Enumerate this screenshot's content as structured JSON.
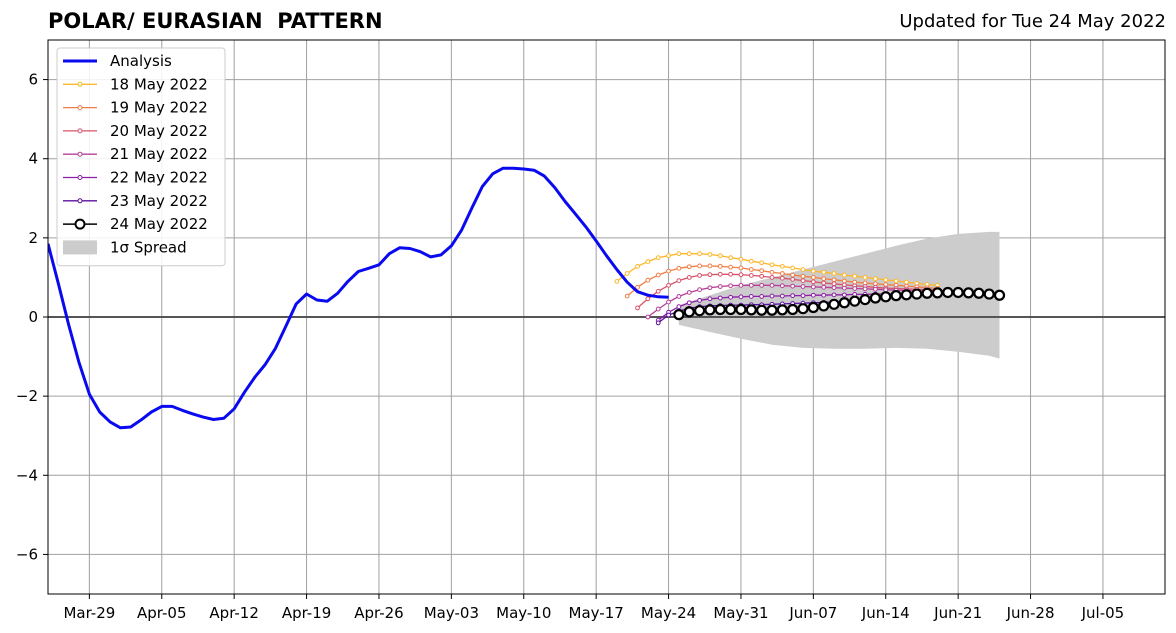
{
  "header": {
    "title": "POLAR/ EURASIAN  PATTERN",
    "subtitle": "Updated for Tue 24 May 2022"
  },
  "chart_data": {
    "type": "line",
    "title": "POLAR/ EURASIAN  PATTERN",
    "subtitle": "Updated for Tue 24 May 2022",
    "xlabel": "",
    "ylabel": "",
    "xlim": [
      "2022-03-25",
      "2022-07-11"
    ],
    "ylim": [
      -7,
      7
    ],
    "grid": true,
    "legend_position": "top-left",
    "x_ticks": [
      "Mar-29",
      "Apr-05",
      "Apr-12",
      "Apr-19",
      "Apr-26",
      "May-03",
      "May-10",
      "May-17",
      "May-24",
      "May-31",
      "Jun-07",
      "Jun-14",
      "Jun-21",
      "Jun-28",
      "Jul-05"
    ],
    "x_tick_dates": [
      "2022-03-29",
      "2022-04-05",
      "2022-04-12",
      "2022-04-19",
      "2022-04-26",
      "2022-05-03",
      "2022-05-10",
      "2022-05-17",
      "2022-05-24",
      "2022-05-31",
      "2022-06-07",
      "2022-06-14",
      "2022-06-21",
      "2022-06-28",
      "2022-07-05"
    ],
    "y_ticks": [
      -6,
      -4,
      -2,
      0,
      2,
      4,
      6
    ],
    "y_tick_labels": [
      "−6",
      "−4",
      "−2",
      "0",
      "2",
      "4",
      "6"
    ],
    "colors": {
      "analysis": "#0a0af0",
      "spread": "#cccccc",
      "grid": "#a0a0a0",
      "zero_line": "#555555"
    },
    "analysis": {
      "name": "Analysis",
      "x": [
        "2022-03-25",
        "2022-03-26",
        "2022-03-27",
        "2022-03-28",
        "2022-03-29",
        "2022-03-30",
        "2022-03-31",
        "2022-04-01",
        "2022-04-02",
        "2022-04-03",
        "2022-04-04",
        "2022-04-05",
        "2022-04-06",
        "2022-04-07",
        "2022-04-08",
        "2022-04-09",
        "2022-04-10",
        "2022-04-11",
        "2022-04-12",
        "2022-04-13",
        "2022-04-14",
        "2022-04-15",
        "2022-04-16",
        "2022-04-17",
        "2022-04-18",
        "2022-04-19",
        "2022-04-20",
        "2022-04-21",
        "2022-04-22",
        "2022-04-23",
        "2022-04-24",
        "2022-04-25",
        "2022-04-26",
        "2022-04-27",
        "2022-04-28",
        "2022-04-29",
        "2022-04-30",
        "2022-05-01",
        "2022-05-02",
        "2022-05-03",
        "2022-05-04",
        "2022-05-05",
        "2022-05-06",
        "2022-05-07",
        "2022-05-08",
        "2022-05-09",
        "2022-05-10",
        "2022-05-11",
        "2022-05-12",
        "2022-05-13",
        "2022-05-14",
        "2022-05-15",
        "2022-05-16",
        "2022-05-17",
        "2022-05-18",
        "2022-05-19",
        "2022-05-20",
        "2022-05-21",
        "2022-05-22",
        "2022-05-23",
        "2022-05-24"
      ],
      "y": [
        1.85,
        0.85,
        -0.2,
        -1.15,
        -1.95,
        -2.4,
        -2.65,
        -2.8,
        -2.78,
        -2.6,
        -2.4,
        -2.26,
        -2.26,
        -2.36,
        -2.45,
        -2.53,
        -2.59,
        -2.56,
        -2.32,
        -1.9,
        -1.52,
        -1.2,
        -0.79,
        -0.23,
        0.33,
        0.58,
        0.43,
        0.4,
        0.6,
        0.9,
        1.15,
        1.23,
        1.32,
        1.6,
        1.75,
        1.73,
        1.65,
        1.52,
        1.57,
        1.8,
        2.2,
        2.76,
        3.3,
        3.62,
        3.76,
        3.76,
        3.74,
        3.71,
        3.56,
        3.27,
        2.92,
        2.6,
        2.28,
        1.92,
        1.55,
        1.2,
        0.88,
        0.64,
        0.55,
        0.51,
        0.5
      ]
    },
    "forecasts": [
      {
        "name": "18 May 2022",
        "color": "#fdb72a",
        "x": [
          "2022-05-19",
          "2022-05-20",
          "2022-05-21",
          "2022-05-22",
          "2022-05-23",
          "2022-05-24",
          "2022-05-25",
          "2022-05-26",
          "2022-05-27",
          "2022-05-28",
          "2022-05-29",
          "2022-05-30",
          "2022-05-31",
          "2022-06-01",
          "2022-06-02",
          "2022-06-03",
          "2022-06-04",
          "2022-06-05",
          "2022-06-06",
          "2022-06-07",
          "2022-06-08",
          "2022-06-09",
          "2022-06-10",
          "2022-06-11",
          "2022-06-12",
          "2022-06-13",
          "2022-06-14",
          "2022-06-15",
          "2022-06-16",
          "2022-06-17",
          "2022-06-18",
          "2022-06-19"
        ],
        "y": [
          0.9,
          1.1,
          1.28,
          1.4,
          1.5,
          1.55,
          1.6,
          1.6,
          1.6,
          1.58,
          1.55,
          1.5,
          1.46,
          1.41,
          1.37,
          1.32,
          1.28,
          1.24,
          1.2,
          1.16,
          1.13,
          1.1,
          1.06,
          1.03,
          1.0,
          0.97,
          0.94,
          0.91,
          0.88,
          0.85,
          0.82,
          0.8
        ]
      },
      {
        "name": "19 May 2022",
        "color": "#f07e45",
        "x": [
          "2022-05-20",
          "2022-05-21",
          "2022-05-22",
          "2022-05-23",
          "2022-05-24",
          "2022-05-25",
          "2022-05-26",
          "2022-05-27",
          "2022-05-28",
          "2022-05-29",
          "2022-05-30",
          "2022-05-31",
          "2022-06-01",
          "2022-06-02",
          "2022-06-03",
          "2022-06-04",
          "2022-06-05",
          "2022-06-06",
          "2022-06-07",
          "2022-06-08",
          "2022-06-09",
          "2022-06-10",
          "2022-06-11",
          "2022-06-12",
          "2022-06-13",
          "2022-06-14",
          "2022-06-15",
          "2022-06-16",
          "2022-06-17",
          "2022-06-18",
          "2022-06-19"
        ],
        "y": [
          0.53,
          0.75,
          0.93,
          1.06,
          1.16,
          1.23,
          1.27,
          1.29,
          1.29,
          1.28,
          1.26,
          1.24,
          1.2,
          1.17,
          1.13,
          1.1,
          1.06,
          1.03,
          1.0,
          0.97,
          0.94,
          0.91,
          0.88,
          0.86,
          0.84,
          0.82,
          0.8,
          0.78,
          0.76,
          0.74,
          0.72
        ]
      },
      {
        "name": "20 May 2022",
        "color": "#d9526a",
        "x": [
          "2022-05-21",
          "2022-05-22",
          "2022-05-23",
          "2022-05-24",
          "2022-05-25",
          "2022-05-26",
          "2022-05-27",
          "2022-05-28",
          "2022-05-29",
          "2022-05-30",
          "2022-05-31",
          "2022-06-01",
          "2022-06-02",
          "2022-06-03",
          "2022-06-04",
          "2022-06-05",
          "2022-06-06",
          "2022-06-07",
          "2022-06-08",
          "2022-06-09",
          "2022-06-10",
          "2022-06-11",
          "2022-06-12",
          "2022-06-13",
          "2022-06-14",
          "2022-06-15",
          "2022-06-16",
          "2022-06-17",
          "2022-06-18",
          "2022-06-19"
        ],
        "y": [
          0.23,
          0.46,
          0.65,
          0.8,
          0.92,
          1.0,
          1.05,
          1.07,
          1.08,
          1.08,
          1.07,
          1.05,
          1.03,
          1.0,
          0.98,
          0.95,
          0.92,
          0.89,
          0.86,
          0.84,
          0.81,
          0.79,
          0.77,
          0.75,
          0.73,
          0.72,
          0.71,
          0.7,
          0.69,
          0.68
        ]
      },
      {
        "name": "21 May 2022",
        "color": "#b63f97",
        "x": [
          "2022-05-22",
          "2022-05-23",
          "2022-05-24",
          "2022-05-25",
          "2022-05-26",
          "2022-05-27",
          "2022-05-28",
          "2022-05-29",
          "2022-05-30",
          "2022-05-31",
          "2022-06-01",
          "2022-06-02",
          "2022-06-03",
          "2022-06-04",
          "2022-06-05",
          "2022-06-06",
          "2022-06-07",
          "2022-06-08",
          "2022-06-09",
          "2022-06-10",
          "2022-06-11",
          "2022-06-12",
          "2022-06-13",
          "2022-06-14",
          "2022-06-15",
          "2022-06-16",
          "2022-06-17",
          "2022-06-18",
          "2022-06-19"
        ],
        "y": [
          0.0,
          0.2,
          0.38,
          0.52,
          0.62,
          0.69,
          0.74,
          0.77,
          0.79,
          0.8,
          0.8,
          0.8,
          0.8,
          0.79,
          0.78,
          0.77,
          0.76,
          0.75,
          0.74,
          0.73,
          0.72,
          0.71,
          0.7,
          0.69,
          0.68,
          0.67,
          0.66,
          0.65,
          0.65
        ]
      },
      {
        "name": "22 May 2022",
        "color": "#8c1ea8",
        "x": [
          "2022-05-23",
          "2022-05-24",
          "2022-05-25",
          "2022-05-26",
          "2022-05-27",
          "2022-05-28",
          "2022-05-29",
          "2022-05-30",
          "2022-05-31",
          "2022-06-01",
          "2022-06-02",
          "2022-06-03",
          "2022-06-04",
          "2022-06-05",
          "2022-06-06",
          "2022-06-07",
          "2022-06-08",
          "2022-06-09",
          "2022-06-10",
          "2022-06-11",
          "2022-06-12",
          "2022-06-13",
          "2022-06-14",
          "2022-06-15",
          "2022-06-16",
          "2022-06-17",
          "2022-06-18",
          "2022-06-19"
        ],
        "y": [
          -0.08,
          0.12,
          0.26,
          0.36,
          0.42,
          0.46,
          0.48,
          0.5,
          0.51,
          0.52,
          0.52,
          0.53,
          0.53,
          0.54,
          0.54,
          0.55,
          0.55,
          0.56,
          0.56,
          0.57,
          0.57,
          0.58,
          0.58,
          0.59,
          0.59,
          0.6,
          0.6,
          0.61
        ]
      },
      {
        "name": "23 May 2022",
        "color": "#5a10a0",
        "x": [
          "2022-05-23",
          "2022-05-24",
          "2022-05-25",
          "2022-05-26",
          "2022-05-27",
          "2022-05-28",
          "2022-05-29",
          "2022-05-30",
          "2022-05-31",
          "2022-06-01",
          "2022-06-02",
          "2022-06-03",
          "2022-06-04",
          "2022-06-05",
          "2022-06-06",
          "2022-06-07",
          "2022-06-08",
          "2022-06-09",
          "2022-06-10",
          "2022-06-11",
          "2022-06-12",
          "2022-06-13",
          "2022-06-14",
          "2022-06-15",
          "2022-06-16",
          "2022-06-17",
          "2022-06-18",
          "2022-06-19"
        ],
        "y": [
          -0.15,
          0.05,
          0.15,
          0.22,
          0.26,
          0.28,
          0.29,
          0.3,
          0.3,
          0.31,
          0.31,
          0.32,
          0.33,
          0.34,
          0.35,
          0.36,
          0.37,
          0.38,
          0.4,
          0.42,
          0.44,
          0.46,
          0.48,
          0.5,
          0.52,
          0.54,
          0.56,
          0.58
        ]
      },
      {
        "name": "24 May 2022",
        "color": "#000000",
        "marker": "open-circle",
        "x": [
          "2022-05-25",
          "2022-05-26",
          "2022-05-27",
          "2022-05-28",
          "2022-05-29",
          "2022-05-30",
          "2022-05-31",
          "2022-06-01",
          "2022-06-02",
          "2022-06-03",
          "2022-06-04",
          "2022-06-05",
          "2022-06-06",
          "2022-06-07",
          "2022-06-08",
          "2022-06-09",
          "2022-06-10",
          "2022-06-11",
          "2022-06-12",
          "2022-06-13",
          "2022-06-14",
          "2022-06-15",
          "2022-06-16",
          "2022-06-17",
          "2022-06-18",
          "2022-06-19",
          "2022-06-20",
          "2022-06-21",
          "2022-06-22",
          "2022-06-23",
          "2022-06-24",
          "2022-06-25"
        ],
        "y": [
          0.06,
          0.13,
          0.16,
          0.18,
          0.19,
          0.19,
          0.19,
          0.18,
          0.17,
          0.17,
          0.18,
          0.19,
          0.21,
          0.24,
          0.28,
          0.32,
          0.36,
          0.4,
          0.44,
          0.48,
          0.51,
          0.54,
          0.56,
          0.58,
          0.6,
          0.61,
          0.62,
          0.62,
          0.61,
          0.6,
          0.58,
          0.55
        ]
      }
    ],
    "spread": {
      "name": "1σ Spread",
      "x": [
        "2022-05-25",
        "2022-05-28",
        "2022-05-31",
        "2022-06-03",
        "2022-06-06",
        "2022-06-09",
        "2022-06-12",
        "2022-06-15",
        "2022-06-18",
        "2022-06-21",
        "2022-06-24",
        "2022-06-25"
      ],
      "upper": [
        0.3,
        0.55,
        0.8,
        1.0,
        1.2,
        1.4,
        1.6,
        1.8,
        1.98,
        2.1,
        2.15,
        2.15
      ],
      "lower": [
        -0.2,
        -0.38,
        -0.55,
        -0.7,
        -0.78,
        -0.8,
        -0.8,
        -0.78,
        -0.8,
        -0.88,
        -0.98,
        -1.05
      ]
    }
  }
}
